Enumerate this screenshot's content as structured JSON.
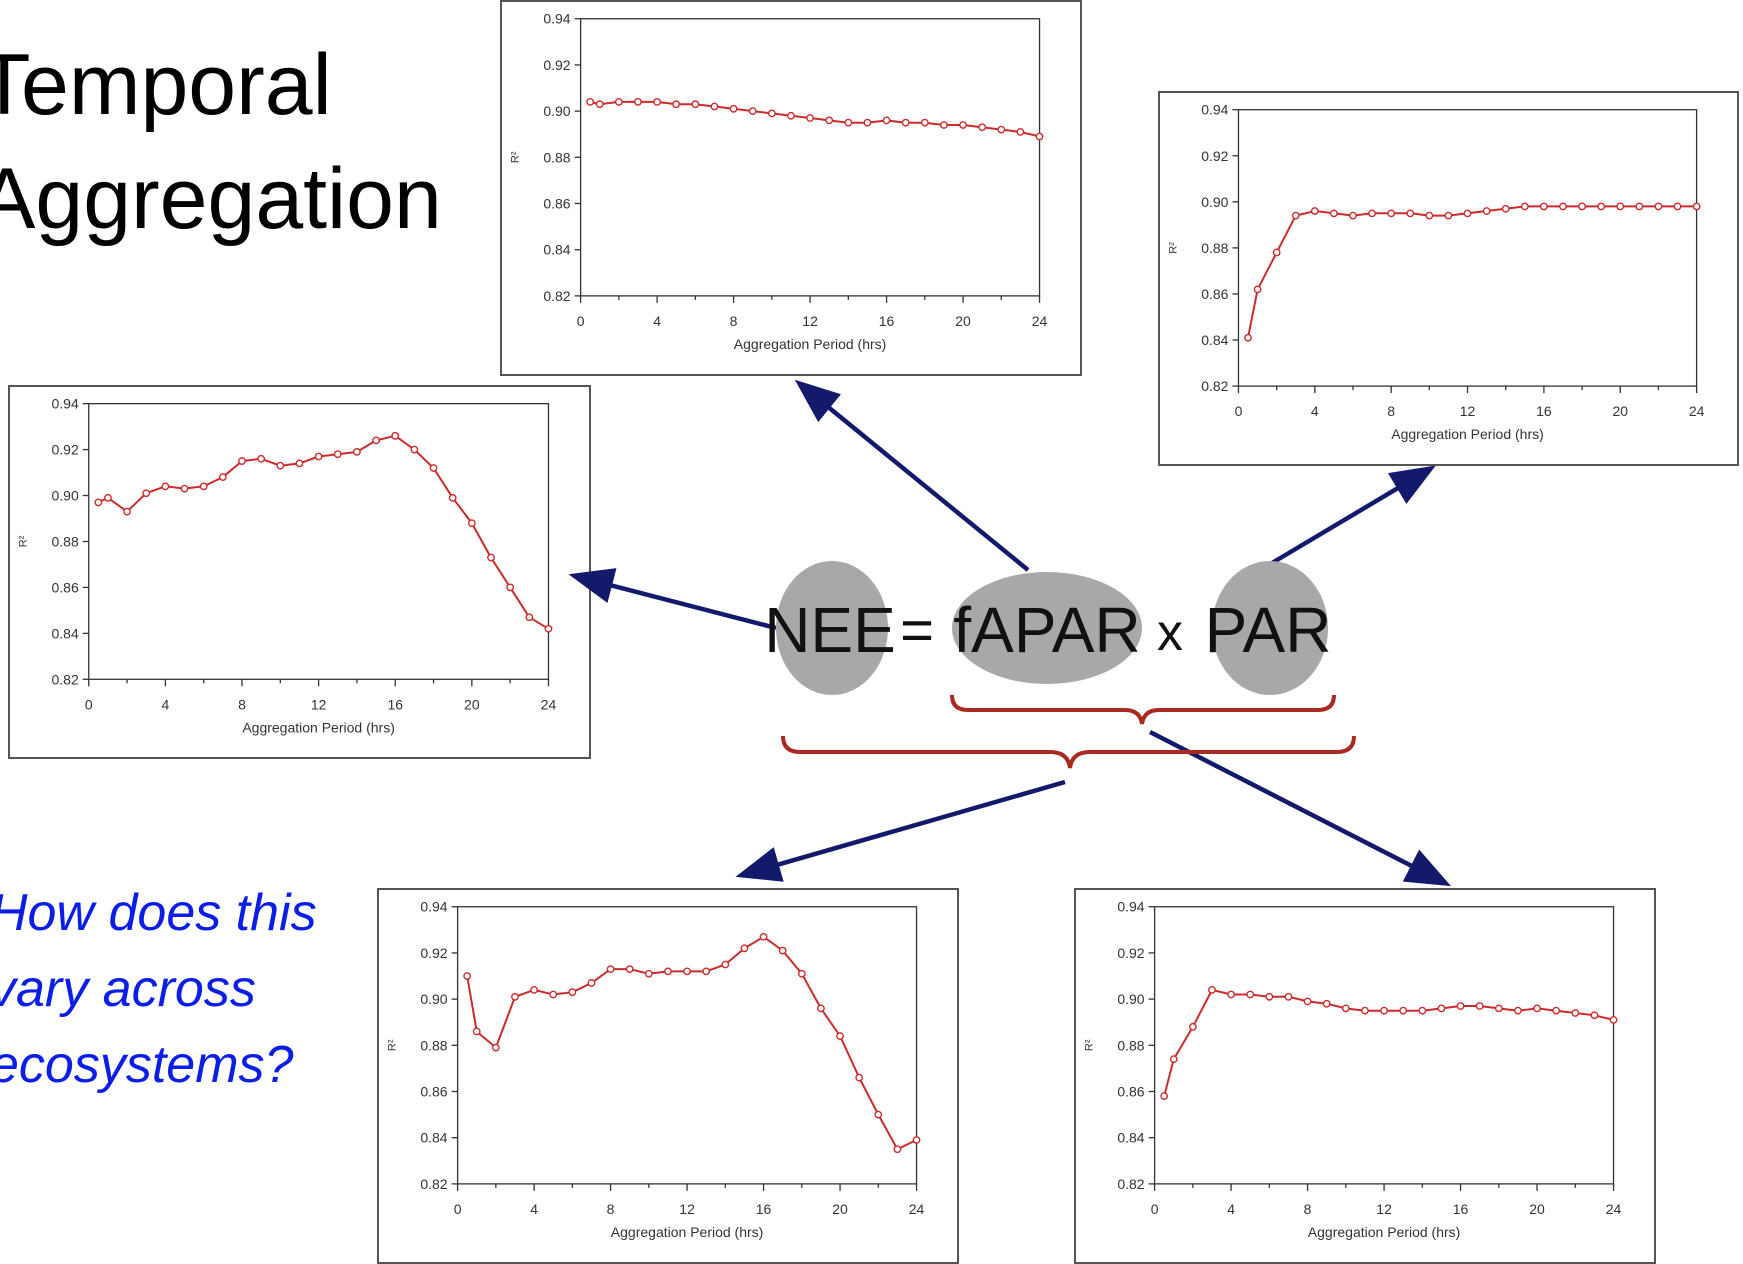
{
  "title_lines": [
    "Temporal",
    "Aggregation"
  ],
  "question_lines": [
    "How does this",
    "vary across",
    "ecosystems?"
  ],
  "equation": {
    "lhs": "NEE",
    "equals": "=",
    "term1": "fAPAR",
    "times": "x",
    "term2": "PAR"
  },
  "colors": {
    "line": "#cc2b2b",
    "arrow": "#141a6b",
    "brace": "#a82a20",
    "bubble": "#a8a8a8",
    "question": "#0a1ee8"
  },
  "chart_data": [
    {
      "id": "top-center",
      "type": "line",
      "xlabel": "Aggregation Period (hrs)",
      "ylabel": "R²",
      "xlim": [
        0,
        24
      ],
      "ylim": [
        0.82,
        0.94
      ],
      "xticks": [
        "0",
        "4",
        "8",
        "12",
        "16",
        "20",
        "24"
      ],
      "yticks": [
        "0.82",
        "0.84",
        "0.86",
        "0.88",
        "0.90",
        "0.92",
        "0.94"
      ],
      "x": [
        0.5,
        1,
        2,
        3,
        4,
        5,
        6,
        7,
        8,
        9,
        10,
        11,
        12,
        13,
        14,
        15,
        16,
        17,
        18,
        19,
        20,
        21,
        22,
        23,
        24
      ],
      "values": [
        0.904,
        0.903,
        0.904,
        0.904,
        0.904,
        0.903,
        0.903,
        0.902,
        0.901,
        0.9,
        0.899,
        0.898,
        0.897,
        0.896,
        0.895,
        0.895,
        0.896,
        0.895,
        0.895,
        0.894,
        0.894,
        0.893,
        0.892,
        0.891,
        0.889
      ]
    },
    {
      "id": "top-right",
      "type": "line",
      "xlabel": "Aggregation Period (hrs)",
      "ylabel": "R²",
      "xlim": [
        0,
        24
      ],
      "ylim": [
        0.82,
        0.94
      ],
      "xticks": [
        "0",
        "4",
        "8",
        "12",
        "16",
        "20",
        "24"
      ],
      "yticks": [
        "0.82",
        "0.84",
        "0.86",
        "0.88",
        "0.90",
        "0.92",
        "0.94"
      ],
      "x": [
        0.5,
        1,
        2,
        3,
        4,
        5,
        6,
        7,
        8,
        9,
        10,
        11,
        12,
        13,
        14,
        15,
        16,
        17,
        18,
        19,
        20,
        21,
        22,
        23,
        24
      ],
      "values": [
        0.841,
        0.862,
        0.878,
        0.894,
        0.896,
        0.895,
        0.894,
        0.895,
        0.895,
        0.895,
        0.894,
        0.894,
        0.895,
        0.896,
        0.897,
        0.898,
        0.898,
        0.898,
        0.898,
        0.898,
        0.898,
        0.898,
        0.898,
        0.898,
        0.898
      ]
    },
    {
      "id": "middle-left",
      "type": "line",
      "xlabel": "Aggregation Period (hrs)",
      "ylabel": "R²",
      "xlim": [
        0,
        24
      ],
      "ylim": [
        0.82,
        0.94
      ],
      "xticks": [
        "0",
        "4",
        "8",
        "12",
        "16",
        "20",
        "24"
      ],
      "yticks": [
        "0.82",
        "0.84",
        "0.86",
        "0.88",
        "0.90",
        "0.92",
        "0.94"
      ],
      "x": [
        0.5,
        1,
        2,
        3,
        4,
        5,
        6,
        7,
        8,
        9,
        10,
        11,
        12,
        13,
        14,
        15,
        16,
        17,
        18,
        19,
        20,
        21,
        22,
        23,
        24
      ],
      "values": [
        0.897,
        0.899,
        0.893,
        0.901,
        0.904,
        0.903,
        0.904,
        0.908,
        0.915,
        0.916,
        0.913,
        0.914,
        0.917,
        0.918,
        0.919,
        0.924,
        0.926,
        0.92,
        0.912,
        0.899,
        0.888,
        0.873,
        0.86,
        0.847,
        0.842
      ]
    },
    {
      "id": "bottom-center",
      "type": "line",
      "xlabel": "Aggregation Period (hrs)",
      "ylabel": "R²",
      "xlim": [
        0,
        24
      ],
      "ylim": [
        0.82,
        0.94
      ],
      "xticks": [
        "0",
        "4",
        "8",
        "12",
        "16",
        "20",
        "24"
      ],
      "yticks": [
        "0.82",
        "0.84",
        "0.86",
        "0.88",
        "0.90",
        "0.92",
        "0.94"
      ],
      "x": [
        0.5,
        1,
        2,
        3,
        4,
        5,
        6,
        7,
        8,
        9,
        10,
        11,
        12,
        13,
        14,
        15,
        16,
        17,
        18,
        19,
        20,
        21,
        22,
        23,
        24
      ],
      "values": [
        0.91,
        0.886,
        0.879,
        0.901,
        0.904,
        0.902,
        0.903,
        0.907,
        0.913,
        0.913,
        0.911,
        0.912,
        0.912,
        0.912,
        0.915,
        0.922,
        0.927,
        0.921,
        0.911,
        0.896,
        0.884,
        0.866,
        0.85,
        0.835,
        0.839
      ]
    },
    {
      "id": "bottom-right",
      "type": "line",
      "xlabel": "Aggregation Period (hrs)",
      "ylabel": "R²",
      "xlim": [
        0,
        24
      ],
      "ylim": [
        0.82,
        0.94
      ],
      "xticks": [
        "0",
        "4",
        "8",
        "12",
        "16",
        "20",
        "24"
      ],
      "yticks": [
        "0.82",
        "0.84",
        "0.86",
        "0.88",
        "0.90",
        "0.92",
        "0.94"
      ],
      "x": [
        0.5,
        1,
        2,
        3,
        4,
        5,
        6,
        7,
        8,
        9,
        10,
        11,
        12,
        13,
        14,
        15,
        16,
        17,
        18,
        19,
        20,
        21,
        22,
        23,
        24
      ],
      "values": [
        0.858,
        0.874,
        0.888,
        0.904,
        0.902,
        0.902,
        0.901,
        0.901,
        0.899,
        0.898,
        0.896,
        0.895,
        0.895,
        0.895,
        0.895,
        0.896,
        0.897,
        0.897,
        0.896,
        0.895,
        0.896,
        0.895,
        0.894,
        0.893,
        0.891
      ]
    }
  ]
}
